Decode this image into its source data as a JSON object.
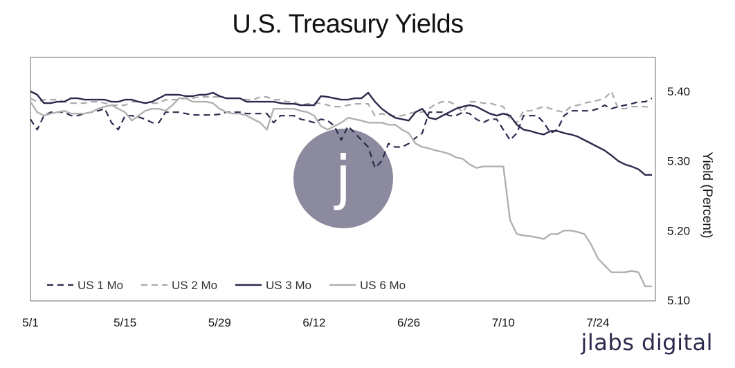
{
  "brand": {
    "text": "jlabs digital",
    "watermark_letter": "j"
  },
  "colors": {
    "us1": "#2b2a4c",
    "us2": "#a9a9a9",
    "us3": "#2b2a4c",
    "us6": "#b0b0b0",
    "watermark": "#8b8a9e"
  },
  "chart_data": {
    "type": "line",
    "title": "U.S.  Treasury Yields",
    "xlabel": "",
    "ylabel": "Yield (Percent)",
    "x_tick_labels": [
      "5/1",
      "5/15",
      "5/29",
      "6/12",
      "6/26",
      "7/10",
      "7/24"
    ],
    "x_tick_days": [
      0,
      14,
      28,
      42,
      56,
      70,
      84
    ],
    "xlim": [
      0,
      92
    ],
    "ylim": [
      5.1,
      5.45
    ],
    "y_ticks": [
      5.4,
      5.3,
      5.2,
      5.1
    ],
    "y_tick_labels": [
      "5.40",
      "5.30",
      "5.20",
      "5.10"
    ],
    "legend_position": "bottom-left",
    "series": [
      {
        "name": "US 1 Mo",
        "style": "dashed",
        "color_key": "us1",
        "x": [
          0,
          1,
          2,
          3,
          4,
          5,
          6,
          7,
          8,
          9,
          10,
          11,
          12,
          13,
          14,
          15,
          16,
          17,
          18,
          19,
          20,
          21,
          22,
          23,
          24,
          25,
          26,
          27,
          28,
          29,
          30,
          31,
          32,
          33,
          34,
          35,
          36,
          37,
          38,
          39,
          40,
          41,
          42,
          43,
          44,
          45,
          46,
          47,
          48,
          49,
          50,
          51,
          52,
          53,
          54,
          55,
          56,
          57,
          58,
          59,
          60,
          61,
          62,
          63,
          64,
          65,
          66,
          67,
          68,
          69,
          70,
          71,
          72,
          73,
          74,
          75,
          76,
          77,
          78,
          79,
          80,
          81,
          82,
          83,
          84,
          85,
          86,
          87,
          88,
          89,
          90,
          91,
          92
        ],
        "values": [
          5.36,
          5.345,
          5.365,
          5.37,
          5.37,
          5.37,
          5.365,
          5.365,
          5.368,
          5.37,
          5.372,
          5.375,
          5.355,
          5.345,
          5.365,
          5.365,
          5.363,
          5.36,
          5.355,
          5.355,
          5.37,
          5.37,
          5.37,
          5.368,
          5.366,
          5.366,
          5.366,
          5.366,
          5.367,
          5.37,
          5.37,
          5.37,
          5.368,
          5.368,
          5.368,
          5.368,
          5.355,
          5.365,
          5.365,
          5.365,
          5.36,
          5.358,
          5.355,
          5.36,
          5.358,
          5.35,
          5.33,
          5.35,
          5.34,
          5.33,
          5.32,
          5.29,
          5.3,
          5.325,
          5.32,
          5.32,
          5.325,
          5.333,
          5.34,
          5.37,
          5.37,
          5.37,
          5.365,
          5.365,
          5.37,
          5.368,
          5.36,
          5.355,
          5.36,
          5.36,
          5.345,
          5.33,
          5.34,
          5.365,
          5.365,
          5.365,
          5.355,
          5.34,
          5.345,
          5.365,
          5.372,
          5.372,
          5.372,
          5.372,
          5.375,
          5.38,
          5.375,
          5.378,
          5.38,
          5.382,
          5.385,
          5.385,
          5.39
        ]
      },
      {
        "name": "US 2 Mo",
        "style": "dashed",
        "color_key": "us2",
        "x": [
          0,
          1,
          2,
          3,
          4,
          5,
          6,
          7,
          8,
          9,
          10,
          11,
          12,
          13,
          14,
          15,
          16,
          17,
          18,
          19,
          20,
          21,
          22,
          23,
          24,
          25,
          26,
          27,
          28,
          29,
          30,
          31,
          32,
          33,
          34,
          35,
          36,
          37,
          38,
          39,
          40,
          41,
          42,
          43,
          44,
          45,
          46,
          47,
          48,
          49,
          50,
          51,
          52,
          53,
          54,
          55,
          56,
          57,
          58,
          59,
          60,
          61,
          62,
          63,
          64,
          65,
          66,
          67,
          68,
          69,
          70,
          71,
          72,
          73,
          74,
          75,
          76,
          77,
          78,
          79,
          80,
          81,
          82,
          83,
          84,
          85,
          86,
          87,
          88,
          89,
          90,
          91,
          92
        ],
        "values": [
          5.39,
          5.385,
          5.388,
          5.388,
          5.388,
          5.385,
          5.383,
          5.383,
          5.383,
          5.385,
          5.385,
          5.383,
          5.38,
          5.38,
          5.38,
          5.385,
          5.385,
          5.383,
          5.383,
          5.383,
          5.388,
          5.388,
          5.388,
          5.39,
          5.39,
          5.392,
          5.392,
          5.392,
          5.392,
          5.39,
          5.39,
          5.39,
          5.388,
          5.388,
          5.392,
          5.392,
          5.388,
          5.388,
          5.385,
          5.385,
          5.38,
          5.382,
          5.383,
          5.383,
          5.38,
          5.378,
          5.378,
          5.38,
          5.382,
          5.382,
          5.382,
          5.365,
          5.368,
          5.365,
          5.365,
          5.365,
          5.368,
          5.37,
          5.37,
          5.375,
          5.382,
          5.385,
          5.385,
          5.38,
          5.37,
          5.385,
          5.385,
          5.383,
          5.383,
          5.38,
          5.378,
          5.36,
          5.355,
          5.372,
          5.372,
          5.375,
          5.378,
          5.375,
          5.372,
          5.37,
          5.378,
          5.38,
          5.383,
          5.385,
          5.387,
          5.39,
          5.4,
          5.375,
          5.375,
          5.378,
          5.378,
          5.378,
          5.377
        ]
      },
      {
        "name": "US 3 Mo",
        "style": "solid",
        "color_key": "us3",
        "x": [
          0,
          1,
          2,
          3,
          4,
          5,
          6,
          7,
          8,
          9,
          10,
          11,
          12,
          13,
          14,
          15,
          16,
          17,
          18,
          19,
          20,
          21,
          22,
          23,
          24,
          25,
          26,
          27,
          28,
          29,
          30,
          31,
          32,
          33,
          34,
          35,
          36,
          37,
          38,
          39,
          40,
          41,
          42,
          43,
          44,
          45,
          46,
          47,
          48,
          49,
          50,
          51,
          52,
          53,
          54,
          55,
          56,
          57,
          58,
          59,
          60,
          61,
          62,
          63,
          64,
          65,
          66,
          67,
          68,
          69,
          70,
          71,
          72,
          73,
          74,
          75,
          76,
          77,
          78,
          79,
          80,
          81,
          82,
          83,
          84,
          85,
          86,
          87,
          88,
          89,
          90,
          91,
          92
        ],
        "values": [
          5.4,
          5.395,
          5.383,
          5.383,
          5.385,
          5.385,
          5.39,
          5.39,
          5.388,
          5.388,
          5.388,
          5.388,
          5.385,
          5.385,
          5.388,
          5.388,
          5.385,
          5.383,
          5.385,
          5.39,
          5.395,
          5.395,
          5.395,
          5.393,
          5.393,
          5.395,
          5.395,
          5.398,
          5.393,
          5.39,
          5.39,
          5.39,
          5.385,
          5.385,
          5.385,
          5.385,
          5.385,
          5.383,
          5.382,
          5.382,
          5.38,
          5.38,
          5.38,
          5.393,
          5.392,
          5.39,
          5.388,
          5.388,
          5.39,
          5.39,
          5.398,
          5.385,
          5.375,
          5.368,
          5.362,
          5.36,
          5.358,
          5.37,
          5.375,
          5.362,
          5.36,
          5.365,
          5.37,
          5.375,
          5.378,
          5.38,
          5.378,
          5.373,
          5.368,
          5.365,
          5.368,
          5.365,
          5.352,
          5.345,
          5.343,
          5.34,
          5.338,
          5.343,
          5.343,
          5.34,
          5.338,
          5.335,
          5.33,
          5.325,
          5.32,
          5.315,
          5.308,
          5.3,
          5.295,
          5.292,
          5.288,
          5.28,
          5.28
        ]
      },
      {
        "name": "US 6 Mo",
        "style": "solid",
        "color_key": "us6",
        "x": [
          0,
          1,
          2,
          3,
          4,
          5,
          6,
          7,
          8,
          9,
          10,
          11,
          12,
          13,
          14,
          15,
          16,
          17,
          18,
          19,
          20,
          21,
          22,
          23,
          24,
          25,
          26,
          27,
          28,
          29,
          30,
          31,
          32,
          33,
          34,
          35,
          36,
          37,
          38,
          39,
          40,
          41,
          42,
          43,
          44,
          45,
          46,
          47,
          48,
          49,
          50,
          51,
          52,
          53,
          54,
          55,
          56,
          57,
          58,
          59,
          60,
          61,
          62,
          63,
          64,
          65,
          66,
          67,
          68,
          69,
          70,
          71,
          72,
          73,
          74,
          75,
          76,
          77,
          78,
          79,
          80,
          81,
          82,
          83,
          84,
          85,
          86,
          87,
          88,
          89,
          90,
          91,
          92
        ],
        "values": [
          5.385,
          5.37,
          5.365,
          5.368,
          5.37,
          5.372,
          5.368,
          5.368,
          5.368,
          5.37,
          5.375,
          5.378,
          5.38,
          5.375,
          5.37,
          5.358,
          5.365,
          5.372,
          5.375,
          5.375,
          5.372,
          5.38,
          5.39,
          5.39,
          5.385,
          5.385,
          5.385,
          5.383,
          5.375,
          5.37,
          5.368,
          5.368,
          5.365,
          5.36,
          5.355,
          5.345,
          5.375,
          5.375,
          5.375,
          5.375,
          5.372,
          5.37,
          5.365,
          5.35,
          5.345,
          5.35,
          5.355,
          5.362,
          5.36,
          5.358,
          5.355,
          5.355,
          5.355,
          5.352,
          5.352,
          5.345,
          5.34,
          5.325,
          5.32,
          5.318,
          5.315,
          5.313,
          5.31,
          5.305,
          5.303,
          5.295,
          5.29,
          5.292,
          5.292,
          5.292,
          5.292,
          5.215,
          5.195,
          5.193,
          5.192,
          5.19,
          5.188,
          5.195,
          5.195,
          5.2,
          5.2,
          5.198,
          5.195,
          5.18,
          5.16,
          5.15,
          5.14,
          5.14,
          5.14,
          5.142,
          5.14,
          5.12,
          5.12
        ]
      }
    ]
  }
}
